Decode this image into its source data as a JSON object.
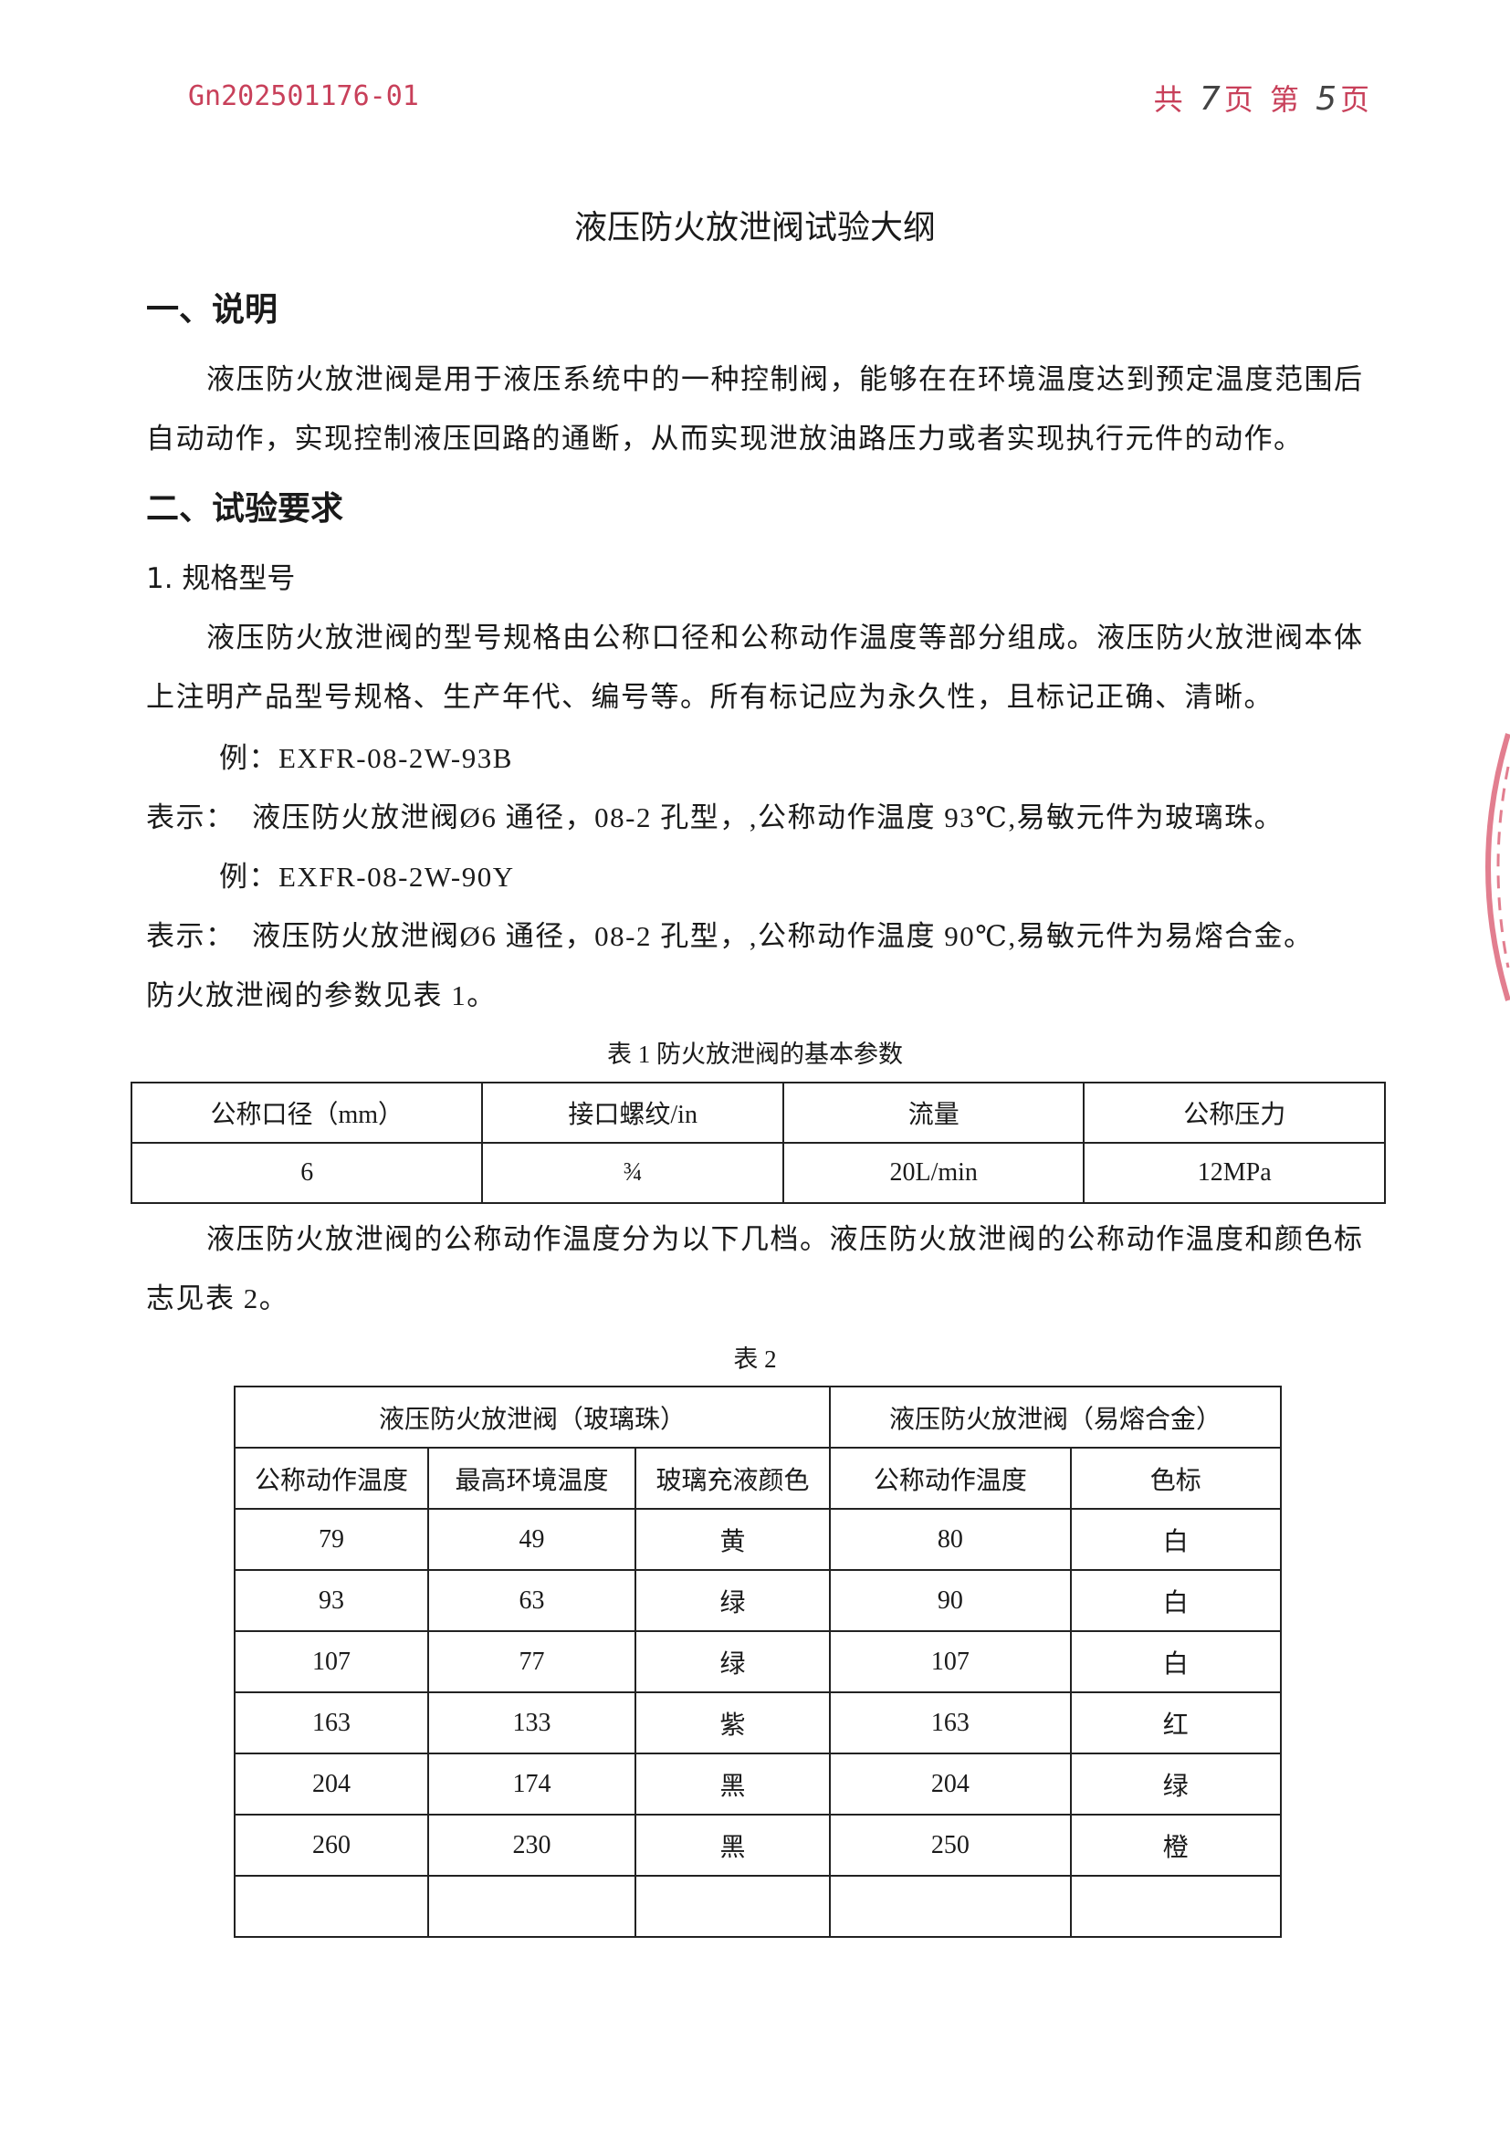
{
  "header": {
    "doc_number": "Gn202501176-01",
    "page_prefix": "共",
    "total_pages": "7",
    "page_mid": "页 第",
    "current_page": "5",
    "page_suffix": "页"
  },
  "title": "液压防火放泄阀试验大纲",
  "section1": {
    "heading": "一、说明",
    "lines": [
      "液压防火放泄阀是用于液压系统中的一种控制阀，能够在在环境温度达到预定温度范围后",
      "自动动作，实现控制液压回路的通断，从而实现泄放油路压力或者实现执行元件的动作。"
    ]
  },
  "section2": {
    "heading": "二、试验要求",
    "sub1": "1. 规格型号",
    "lines": [
      "液压防火放泄阀的型号规格由公称口径和公称动作温度等部分组成。液压防火放泄阀本体",
      "上注明产品型号规格、生产年代、编号等。所有标记应为永久性，且标记正确、清晰。"
    ],
    "example1": "例：EXFR-08-2W-93B",
    "meaning1": "表示：  液压防火放泄阀Ø6 通径，08-2 孔型，,公称动作温度 93℃,易敏元件为玻璃珠。",
    "example2": "例：EXFR-08-2W-90Y",
    "meaning2": "表示：  液压防火放泄阀Ø6 通径，08-2 孔型，,公称动作温度 90℃,易敏元件为易熔合金。",
    "ref": "防火放泄阀的参数见表 1。",
    "lines2": [
      "液压防火放泄阀的公称动作温度分为以下几档。液压防火放泄阀的公称动作温度和颜色标",
      "志见表 2。"
    ]
  },
  "table1": {
    "caption": "表 1 防火放泄阀的基本参数",
    "headers": [
      "公称口径（mm）",
      "接口螺纹/in",
      "流量",
      "公称压力"
    ],
    "row": [
      "6",
      "¾",
      "20L/min",
      "12MPa"
    ]
  },
  "table2": {
    "caption": "表 2",
    "group1": "液压防火放泄阀（玻璃珠）",
    "group2": "液压防火放泄阀（易熔合金）",
    "headers": [
      "公称动作温度",
      "最高环境温度",
      "玻璃充液颜色",
      "公称动作温度",
      "色标"
    ],
    "rows": [
      [
        "79",
        "49",
        "黄",
        "80",
        "白"
      ],
      [
        "93",
        "63",
        "绿",
        "90",
        "白"
      ],
      [
        "107",
        "77",
        "绿",
        "107",
        "白"
      ],
      [
        "163",
        "133",
        "紫",
        "163",
        "红"
      ],
      [
        "204",
        "174",
        "黑",
        "204",
        "绿"
      ],
      [
        "260",
        "230",
        "黑",
        "250",
        "橙"
      ],
      [
        "",
        "",
        "",
        "",
        ""
      ]
    ]
  },
  "colors": {
    "header_red": "#c8405a",
    "stamp_red": "#d9546a"
  }
}
